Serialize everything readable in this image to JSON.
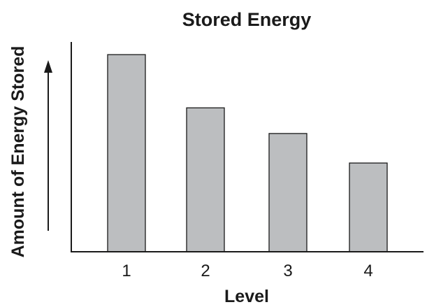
{
  "chart_data": {
    "type": "bar",
    "title": "Stored Energy",
    "xlabel": "Level",
    "ylabel": "Amount of Energy Stored",
    "categories": [
      "1",
      "2",
      "3",
      "4"
    ],
    "values": [
      100,
      73,
      60,
      45
    ],
    "ylim": [
      0,
      105
    ],
    "y_ticks_shown": false,
    "y_axis_arrow": true,
    "bar_color": "#bcbec0",
    "grid": false,
    "legend": "none"
  }
}
